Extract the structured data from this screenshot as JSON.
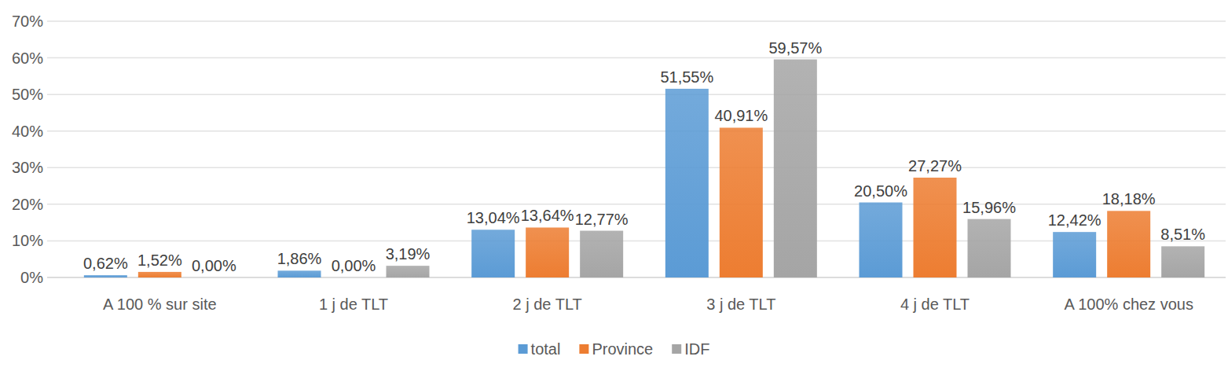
{
  "chart_data": {
    "type": "bar",
    "categories": [
      "A 100 % sur site",
      "1 j de TLT",
      "2 j de TLT",
      "3 j de TLT",
      "4 j de TLT",
      "A 100% chez vous"
    ],
    "series": [
      {
        "name": "total",
        "color": "#5b9bd5",
        "values": [
          0.62,
          1.86,
          13.04,
          51.55,
          20.5,
          12.42
        ],
        "value_labels": [
          "0,62%",
          "1,86%",
          "13,04%",
          "51,55%",
          "20,50%",
          "12,42%"
        ]
      },
      {
        "name": "Province",
        "color": "#ed7d31",
        "values": [
          1.52,
          0,
          13.64,
          40.91,
          27.27,
          18.18
        ],
        "value_labels": [
          "1,52%",
          "0,00%",
          "13,64%",
          "40,91%",
          "27,27%",
          "18,18%"
        ]
      },
      {
        "name": "IDF",
        "color": "#a5a5a5",
        "values": [
          0,
          3.19,
          12.77,
          59.57,
          15.96,
          8.51
        ],
        "value_labels": [
          "0,00%",
          "3,19%",
          "12,77%",
          "59,57%",
          "15,96%",
          "8,51%"
        ]
      }
    ],
    "ylim": [
      0,
      70
    ],
    "yticks": [
      {
        "value": 0,
        "label": "0%"
      },
      {
        "value": 10,
        "label": "10%"
      },
      {
        "value": 20,
        "label": "20%"
      },
      {
        "value": 30,
        "label": "30%"
      },
      {
        "value": 40,
        "label": "40%"
      },
      {
        "value": 50,
        "label": "50%"
      },
      {
        "value": 60,
        "label": "60%"
      },
      {
        "value": 70,
        "label": "70%"
      }
    ],
    "grid": true,
    "data_labels": true,
    "legend": "bottom"
  }
}
